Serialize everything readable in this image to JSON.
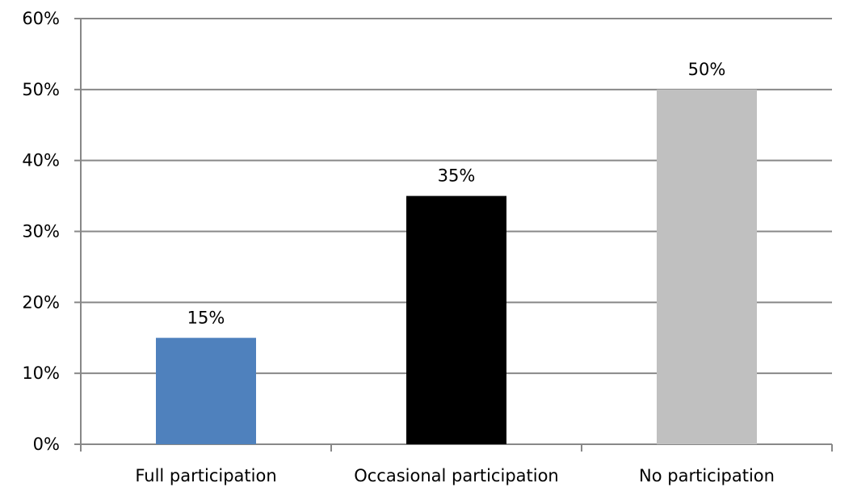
{
  "chart_data": {
    "type": "bar",
    "title": "",
    "xlabel": "",
    "ylabel": "",
    "categories": [
      "Full participation",
      "Occasional participation",
      "No participation"
    ],
    "values": [
      15,
      35,
      50
    ],
    "value_labels": [
      "15%",
      "35%",
      "50%"
    ],
    "bar_colors": [
      "#4f81bd",
      "#000000",
      "#c0c0c0"
    ],
    "ylim": [
      0,
      60
    ],
    "y_ticks": [
      0,
      10,
      20,
      30,
      40,
      50,
      60
    ],
    "y_tick_labels": [
      "0%",
      "10%",
      "20%",
      "30%",
      "40%",
      "50%",
      "60%"
    ],
    "grid": true,
    "legend": "none"
  }
}
